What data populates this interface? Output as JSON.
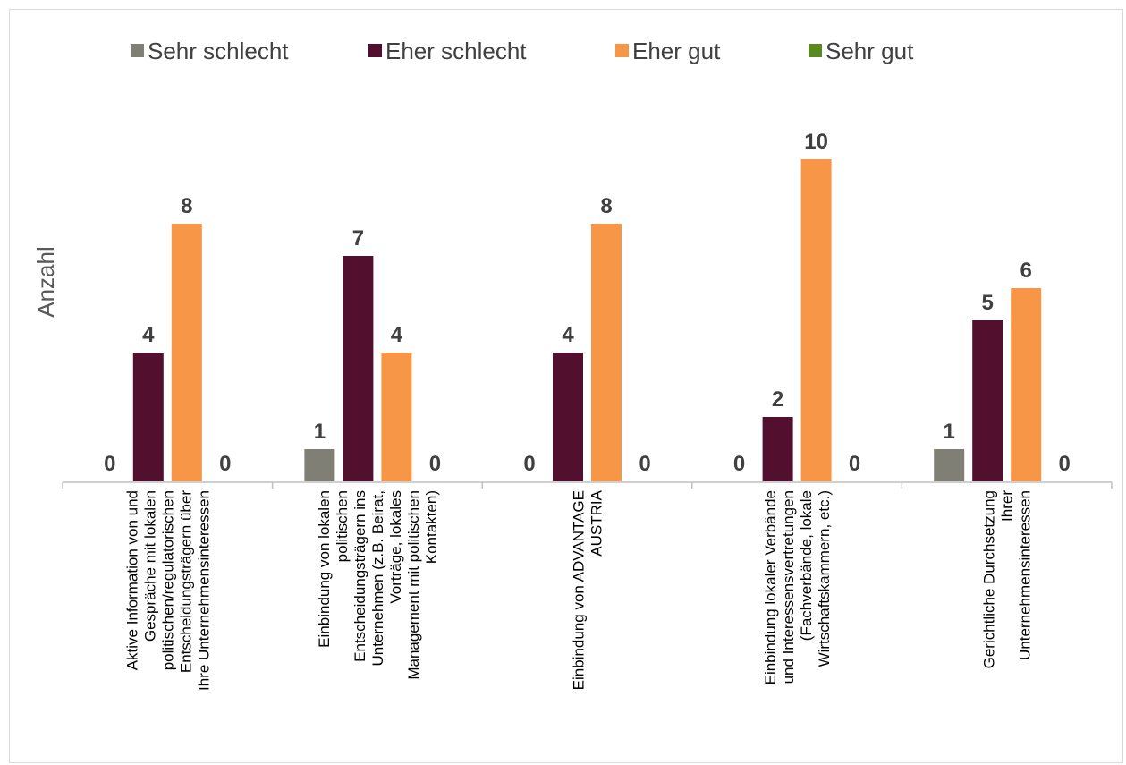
{
  "chart_data": {
    "type": "bar",
    "ylabel": "Anzahl",
    "xlabel": "",
    "ylim": [
      0,
      11
    ],
    "grid": false,
    "legend_position": "top",
    "categories": [
      [
        "Aktive Information von und",
        "Gespräche mit lokalen",
        "politischen/regulatorischen",
        "Entscheidungsträgern über",
        "Ihre Unternehmensinteressen"
      ],
      [
        "Einbindung von lokalen",
        "politischen",
        "Entscheidungsträgern ins",
        "Unternehmen (z.B. Beirat,",
        "Vorträge, lokales",
        "Management mit politischen",
        "Kontakten)"
      ],
      [
        "Einbindung von ADVANTAGE",
        "AUSTRIA"
      ],
      [
        "Einbindung lokaler Verbände",
        "und Interessensvertretungen",
        "(Fachverbände, lokale",
        "Wirtschaftskammern, etc.)"
      ],
      [
        "Gerichtliche Durchsetzung",
        "Ihrer",
        "Unternehmensinteressen"
      ]
    ],
    "series": [
      {
        "name": "Sehr schlecht",
        "color": "#7f7f75",
        "values": [
          0,
          1,
          0,
          0,
          1
        ]
      },
      {
        "name": "Eher schlecht",
        "color": "#520f2e",
        "values": [
          4,
          7,
          4,
          2,
          5
        ]
      },
      {
        "name": "Eher gut",
        "color": "#f79646",
        "values": [
          8,
          4,
          8,
          10,
          6
        ]
      },
      {
        "name": "Sehr gut",
        "color": "#5a8a1f",
        "values": [
          0,
          0,
          0,
          0,
          0
        ]
      }
    ]
  }
}
